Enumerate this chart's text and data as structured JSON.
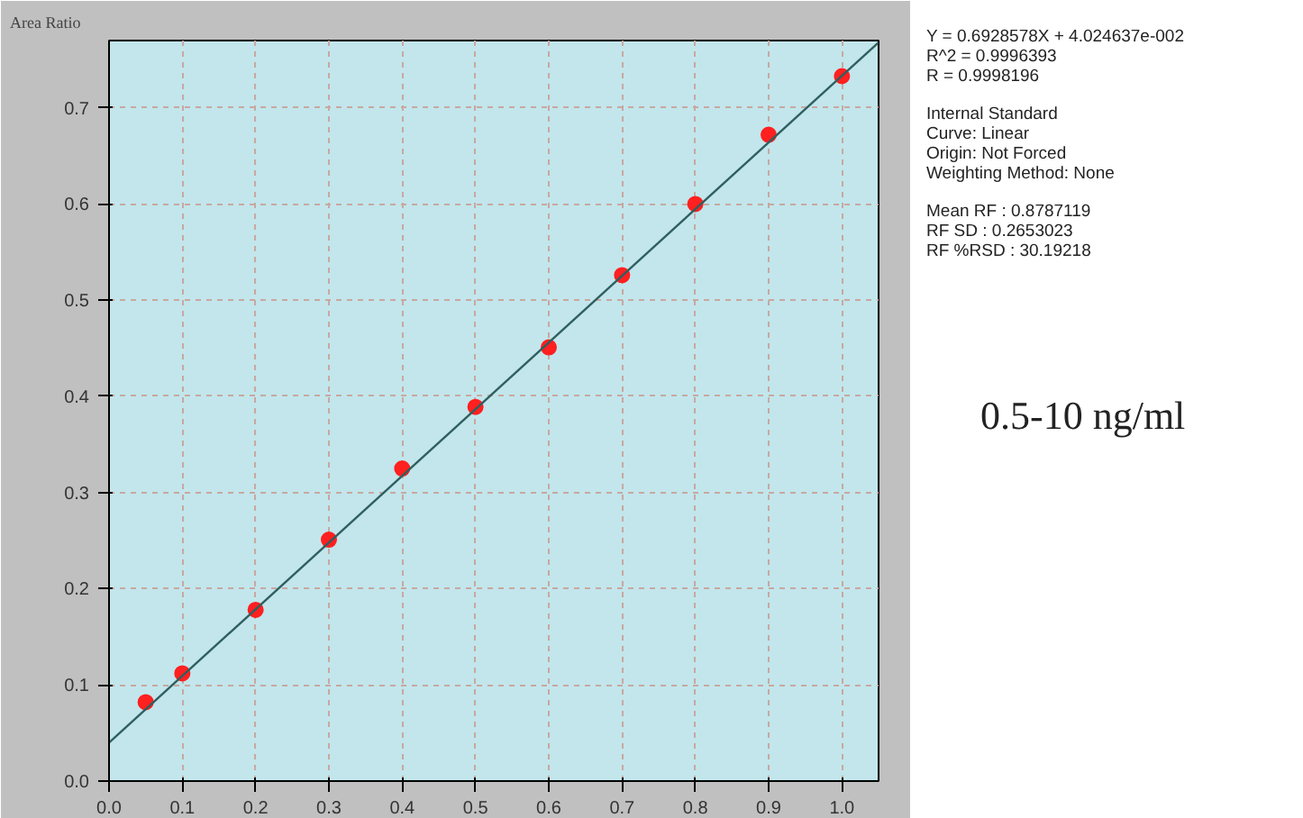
{
  "chart_data": {
    "type": "scatter",
    "ylabel": "Area Ratio",
    "xlim": [
      0,
      1.05
    ],
    "ylim": [
      0,
      0.77
    ],
    "xticks": [
      {
        "value": 0,
        "label": "0.0"
      },
      {
        "value": 0.1,
        "label": "0.1"
      },
      {
        "value": 0.2,
        "label": "0.2"
      },
      {
        "value": 0.3,
        "label": "0.3"
      },
      {
        "value": 0.4,
        "label": "0.4"
      },
      {
        "value": 0.5,
        "label": "0.5"
      },
      {
        "value": 0.6,
        "label": "0.6"
      },
      {
        "value": 0.7,
        "label": "0.7"
      },
      {
        "value": 0.8,
        "label": "0.8"
      },
      {
        "value": 0.9,
        "label": "0.9"
      },
      {
        "value": 1.0,
        "label": "1.0"
      }
    ],
    "yticks": [
      {
        "value": 0,
        "label": "0.0"
      },
      {
        "value": 0.1,
        "label": "0.1"
      },
      {
        "value": 0.2,
        "label": "0.2"
      },
      {
        "value": 0.3,
        "label": "0.3"
      },
      {
        "value": 0.4,
        "label": "0.4"
      },
      {
        "value": 0.5,
        "label": "0.5"
      },
      {
        "value": 0.6,
        "label": "0.6"
      },
      {
        "value": 0.7,
        "label": "0.7"
      }
    ],
    "grid": true,
    "series": [
      {
        "color": "#ff2020",
        "marker": "circle",
        "x": [
          0.05,
          0.1,
          0.2,
          0.3,
          0.4,
          0.5,
          0.6,
          0.7,
          0.8,
          0.9,
          1.0
        ],
        "values": [
          0.082,
          0.112,
          0.178,
          0.251,
          0.325,
          0.389,
          0.451,
          0.526,
          0.6,
          0.672,
          0.733
        ]
      },
      {
        "type": "line",
        "color": "#2f5f5f",
        "x": [
          0,
          1.05
        ],
        "values": [
          0.04,
          0.768
        ],
        "marker": "none"
      }
    ],
    "annotations": [
      "Y = 0.6928578X + 4.024637e-002",
      "R^2 = 0.9996393",
      "R = 0.9998196",
      "Internal Standard",
      "Curve: Linear",
      "Origin: Not Forced",
      "Weighting Method: None",
      "Mean RF : 0.8787119",
      "RF SD : 0.2653023",
      "RF %RSD : 30.19218",
      "0.5-10 ng/ml"
    ]
  }
}
